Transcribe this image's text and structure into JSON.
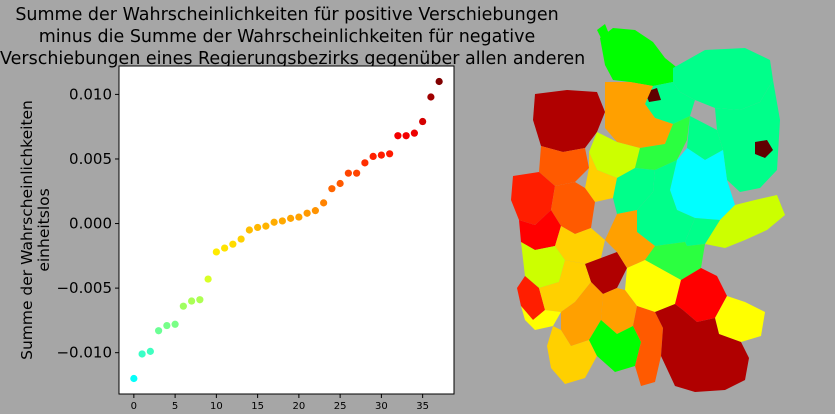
{
  "chart_data": {
    "type": "scatter",
    "title": [
      "Summe der Wahrscheinlichkeiten für positive Verschiebungen",
      "minus die Summe der Wahrscheinlichkeiten für negative",
      "Verschiebungen eines Regierungsbezirks gegenüber allen anderen"
    ],
    "ylabel": [
      "Summe der Wahrscheinlichkeiten",
      "einheitslos"
    ],
    "xlabel": "",
    "xlim": [
      -1.8,
      38.8
    ],
    "ylim": [
      -0.0132,
      0.0122
    ],
    "x_ticks": [
      0,
      5,
      10,
      15,
      20,
      25,
      30,
      35
    ],
    "x_tick_labels": [
      "0",
      "5",
      "10",
      "15",
      "20",
      "25",
      "30",
      "35"
    ],
    "y_ticks": [
      0.01,
      0.005,
      0.0,
      -0.005,
      -0.01
    ],
    "y_tick_labels": [
      "0.010",
      "0.005",
      "0.000",
      "−0.005",
      "−0.010"
    ],
    "grid": false,
    "colormap": "jet",
    "points": [
      {
        "x": 0,
        "y": -0.012
      },
      {
        "x": 1,
        "y": -0.0101
      },
      {
        "x": 2,
        "y": -0.0099
      },
      {
        "x": 3,
        "y": -0.0083
      },
      {
        "x": 4,
        "y": -0.0079
      },
      {
        "x": 5,
        "y": -0.0078
      },
      {
        "x": 6,
        "y": -0.0064
      },
      {
        "x": 7,
        "y": -0.006
      },
      {
        "x": 8,
        "y": -0.0059
      },
      {
        "x": 9,
        "y": -0.0043
      },
      {
        "x": 10,
        "y": -0.0022
      },
      {
        "x": 11,
        "y": -0.0019
      },
      {
        "x": 12,
        "y": -0.0016
      },
      {
        "x": 13,
        "y": -0.0012
      },
      {
        "x": 14,
        "y": -0.0005
      },
      {
        "x": 15,
        "y": -0.0003
      },
      {
        "x": 16,
        "y": -0.0002
      },
      {
        "x": 17,
        "y": 0.0001
      },
      {
        "x": 18,
        "y": 0.0002
      },
      {
        "x": 19,
        "y": 0.0004
      },
      {
        "x": 20,
        "y": 0.0005
      },
      {
        "x": 21,
        "y": 0.0008
      },
      {
        "x": 22,
        "y": 0.001
      },
      {
        "x": 23,
        "y": 0.0016
      },
      {
        "x": 24,
        "y": 0.0027
      },
      {
        "x": 25,
        "y": 0.0031
      },
      {
        "x": 26,
        "y": 0.0039
      },
      {
        "x": 27,
        "y": 0.0039
      },
      {
        "x": 28,
        "y": 0.0047
      },
      {
        "x": 29,
        "y": 0.0052
      },
      {
        "x": 30,
        "y": 0.0053
      },
      {
        "x": 31,
        "y": 0.0054
      },
      {
        "x": 32,
        "y": 0.0068
      },
      {
        "x": 33,
        "y": 0.0068
      },
      {
        "x": 34,
        "y": 0.007
      },
      {
        "x": 35,
        "y": 0.0079
      },
      {
        "x": 36,
        "y": 0.0098
      },
      {
        "x": 37,
        "y": 0.011
      }
    ]
  },
  "map": {
    "description_name": "choropleth map of German administrative districts colored by score",
    "region_colors": [
      "#00ff00",
      "#00ff8a",
      "#00ffff",
      "#2bff40",
      "#b00000",
      "#ff5a00",
      "#ff1e00",
      "#ffa000",
      "#ffd000",
      "#ffff00",
      "#ccff00",
      "#600000",
      "#000000"
    ]
  }
}
